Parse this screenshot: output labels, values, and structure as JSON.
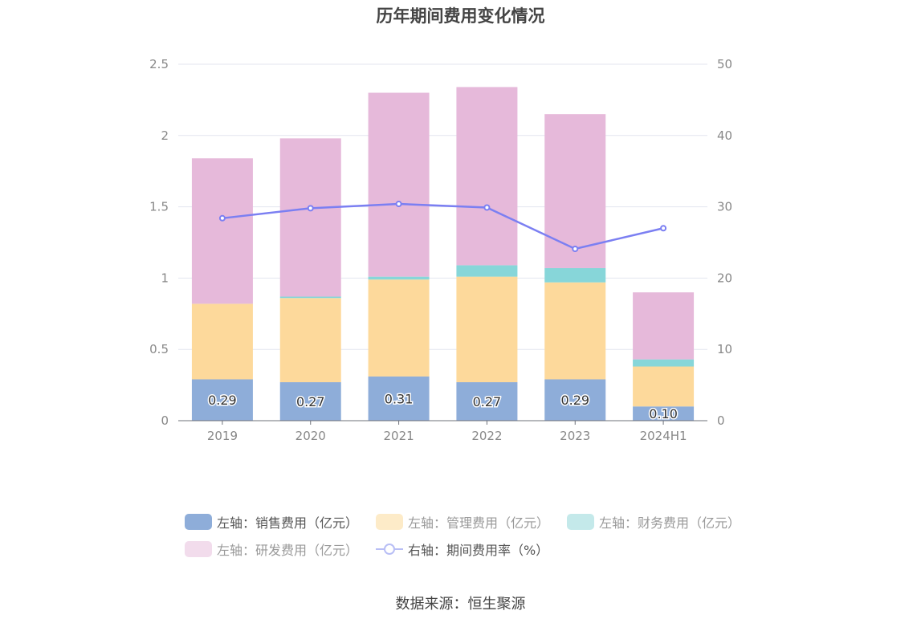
{
  "chart_data": {
    "type": "bar",
    "title": "历年期间费用变化情况",
    "categories": [
      "2019",
      "2020",
      "2021",
      "2022",
      "2023",
      "2024H1"
    ],
    "stacked": true,
    "series": [
      {
        "name": "左轴：销售费用（亿元）",
        "axis": "left",
        "color": "#8eadd9",
        "values": [
          0.29,
          0.27,
          0.31,
          0.27,
          0.29,
          0.1
        ],
        "labels": [
          "0.29",
          "0.27",
          "0.31",
          "0.27",
          "0.29",
          "0.10"
        ]
      },
      {
        "name": "左轴：管理费用（亿元）",
        "axis": "left",
        "color": "#fdd99b",
        "values": [
          0.53,
          0.59,
          0.68,
          0.74,
          0.68,
          0.28
        ]
      },
      {
        "name": "左轴：财务费用（亿元）",
        "axis": "left",
        "color": "#87d6d9",
        "values": [
          0.0,
          0.01,
          0.02,
          0.08,
          0.1,
          0.05
        ]
      },
      {
        "name": "左轴：研发费用（亿元）",
        "axis": "left",
        "color": "#e6b9da",
        "values": [
          1.02,
          1.11,
          1.29,
          1.25,
          1.08,
          0.47
        ]
      },
      {
        "name": "右轴：期间费用率（%）",
        "axis": "right",
        "type": "line",
        "color": "#7b7ff2",
        "values": [
          28.4,
          29.8,
          30.4,
          29.9,
          24.1,
          27.0
        ]
      }
    ],
    "ylim_left": [
      0,
      2.5
    ],
    "yticks_left": [
      "0",
      "0.5",
      "1",
      "1.5",
      "2",
      "2.5"
    ],
    "ylim_right": [
      0,
      50
    ],
    "yticks_right": [
      "0",
      "10",
      "20",
      "30",
      "40",
      "50"
    ],
    "grid": true,
    "legend_position": "bottom"
  },
  "legend": {
    "items": [
      {
        "label": "左轴：销售费用（亿元）",
        "color": "#8eadd9",
        "kind": "box",
        "dim": false
      },
      {
        "label": "左轴：管理费用（亿元）",
        "color": "#fdebc8",
        "kind": "box",
        "dim": true
      },
      {
        "label": "左轴：财务费用（亿元）",
        "color": "#c4e9ea",
        "kind": "box",
        "dim": true
      },
      {
        "label": "左轴：研发费用（亿元）",
        "color": "#f2dcec",
        "kind": "box",
        "dim": true
      },
      {
        "label": "右轴：期间费用率（%）",
        "color": "#b8bef5",
        "kind": "line",
        "dim": false
      }
    ]
  },
  "source": "数据来源：恒生聚源"
}
